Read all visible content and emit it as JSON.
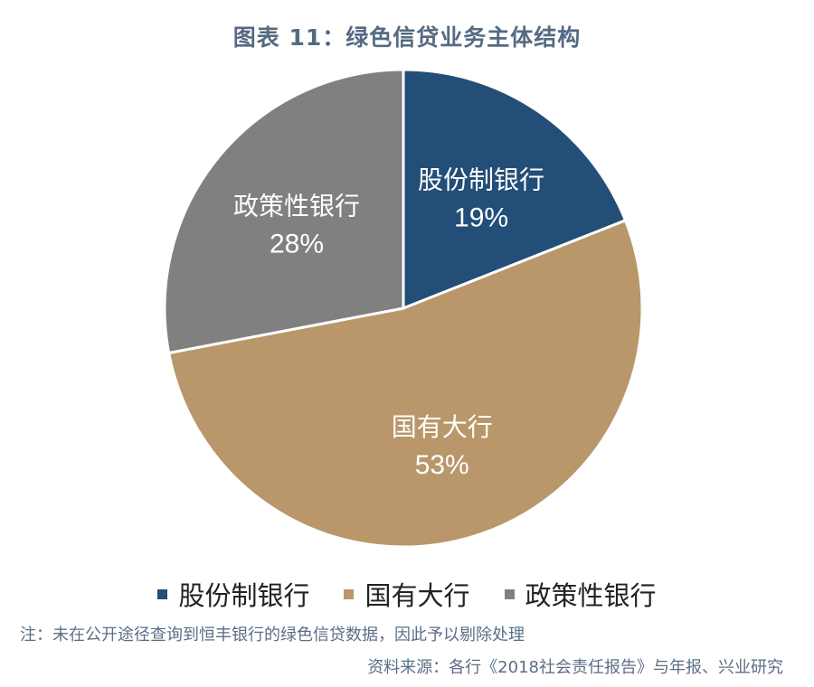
{
  "chart_data": {
    "type": "pie",
    "title": "图表 11：绿色信贷业务主体结构",
    "slices": [
      {
        "label": "股份制银行",
        "value": 19,
        "value_label": "19%",
        "color": "#234e77"
      },
      {
        "label": "国有大行",
        "value": 53,
        "value_label": "53%",
        "color": "#b9976a"
      },
      {
        "label": "政策性银行",
        "value": 28,
        "value_label": "28%",
        "color": "#808080"
      }
    ],
    "legend": {
      "position": "bottom"
    }
  },
  "note": "注：未在公开途径查询到恒丰银行的绿色信贷数据，因此予以剔除处理",
  "source": "资料来源：各行《2018社会责任报告》与年报、兴业研究"
}
